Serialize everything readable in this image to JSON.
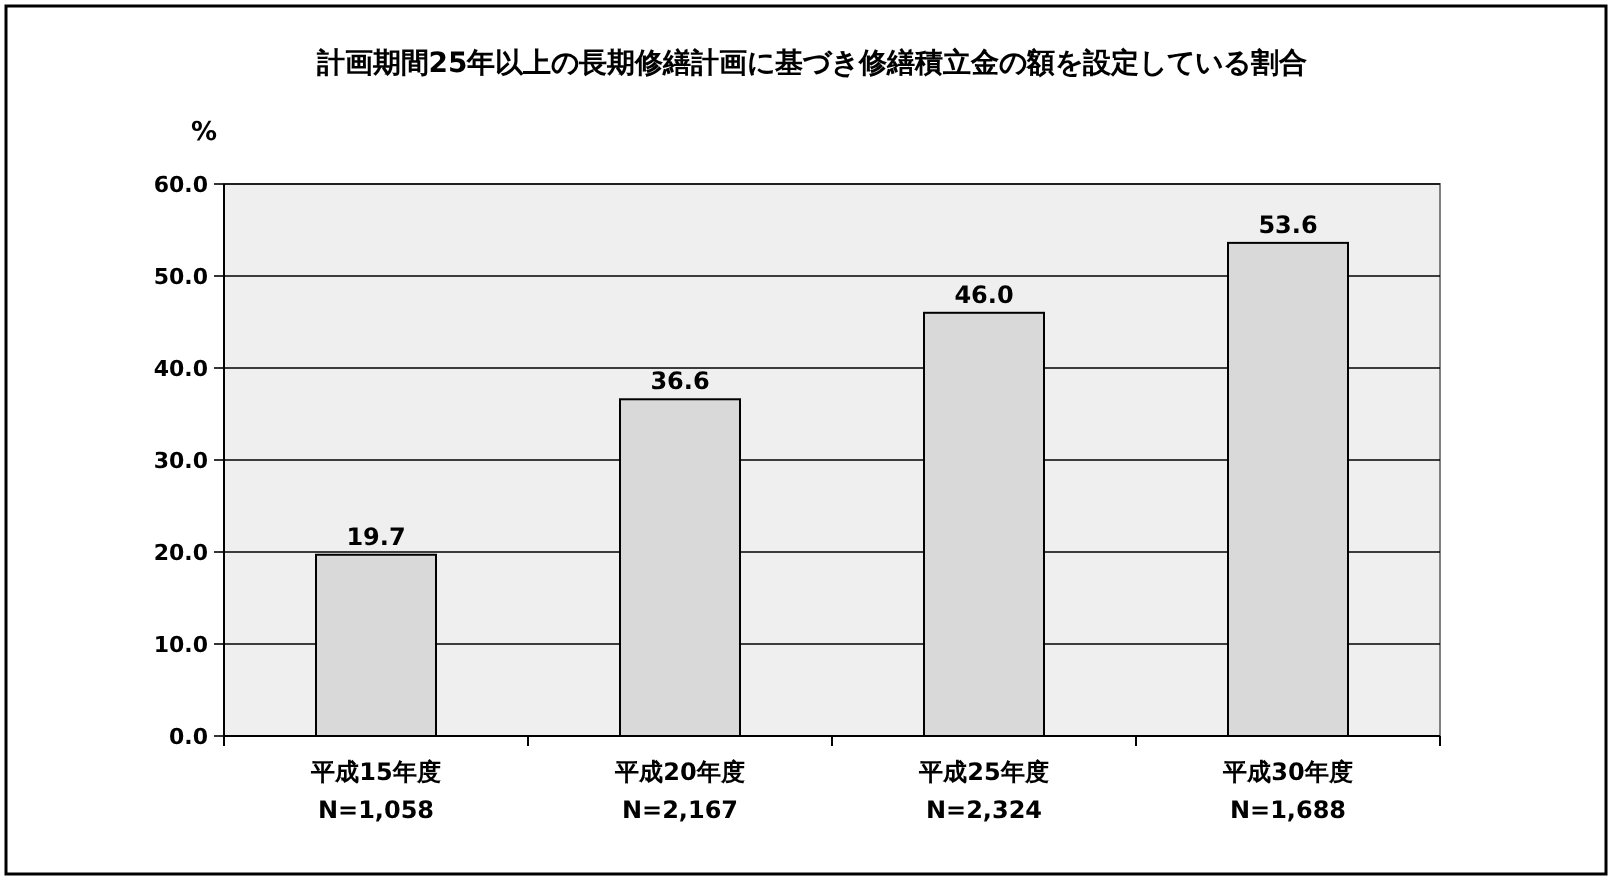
{
  "chart_data": {
    "type": "bar",
    "title": "計画期間25年以上の長期修繕計画に基づき修繕積立金の額を設定している割合",
    "ylabel": "%",
    "categories": [
      "平成15年度\nN=1,058",
      "平成20年度\nN=2,167",
      "平成25年度\nN=2,324",
      "平成30年度\nN=1,688"
    ],
    "values": [
      19.7,
      36.6,
      46.0,
      53.6
    ],
    "value_labels": [
      "19.7",
      "36.6",
      "46.0",
      "53.6"
    ],
    "color": "#d9d9d9",
    "ylim": [
      0,
      60
    ],
    "yticks": [
      {
        "value": 0,
        "label": "0.0"
      },
      {
        "value": 10,
        "label": "10.0"
      },
      {
        "value": 20,
        "label": "20.0"
      },
      {
        "value": 30,
        "label": "30.0"
      },
      {
        "value": 40,
        "label": "40.0"
      },
      {
        "value": 50,
        "label": "50.0"
      },
      {
        "value": 60,
        "label": "60.0"
      }
    ],
    "grid": "y"
  }
}
